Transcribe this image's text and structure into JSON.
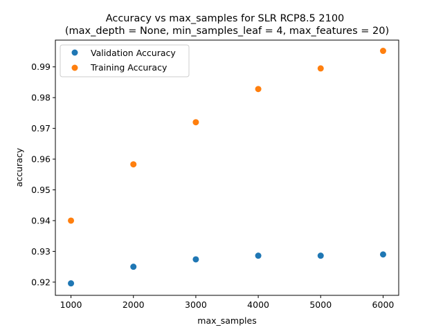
{
  "chart_data": {
    "type": "scatter",
    "title_line1": "Accuracy vs max_samples for SLR RCP8.5 2100",
    "title_line2": "(max_depth = None, min_samples_leaf = 4, max_features = 20)",
    "xlabel": "max_samples",
    "ylabel": "accuracy",
    "xlim": [
      750,
      6250
    ],
    "ylim": [
      0.9157,
      0.9987
    ],
    "xticks": [
      1000,
      2000,
      3000,
      4000,
      5000,
      6000
    ],
    "yticks": [
      0.92,
      0.93,
      0.94,
      0.95,
      0.96,
      0.97,
      0.98,
      0.99
    ],
    "grid": false,
    "legend_position": "upper-left",
    "x": [
      1000,
      2000,
      3000,
      4000,
      5000,
      6000
    ],
    "series": [
      {
        "name": "Validation Accuracy",
        "color": "#1f77b4",
        "values": [
          0.9196,
          0.925,
          0.9274,
          0.9286,
          0.9286,
          0.929
        ]
      },
      {
        "name": "Training Accuracy",
        "color": "#ff7f0e",
        "values": [
          0.94,
          0.9583,
          0.972,
          0.9828,
          0.9895,
          0.9952
        ]
      }
    ]
  }
}
